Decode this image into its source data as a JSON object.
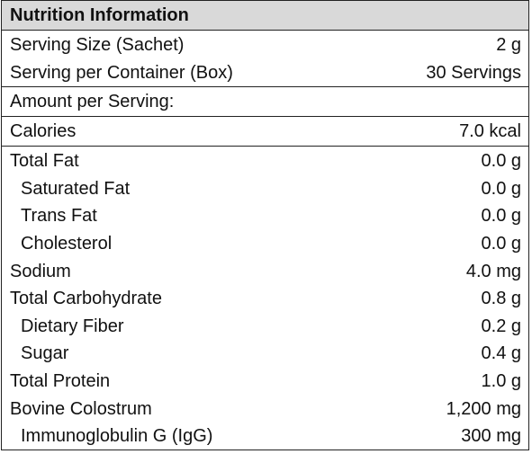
{
  "title": "Nutrition Information",
  "serving": [
    {
      "label": "Serving Size (Sachet)",
      "value": "2 g"
    },
    {
      "label": "Serving per Container (Box)",
      "value": "30 Servings"
    }
  ],
  "amount_label": "Amount per Serving:",
  "calories": {
    "label": "Calories",
    "value": "7.0 kcal"
  },
  "nutrients": [
    {
      "label": "Total Fat",
      "value": "0.0 g"
    },
    {
      "label": "Saturated Fat",
      "value": "0.0 g"
    },
    {
      "label": "Trans Fat",
      "value": "0.0 g"
    },
    {
      "label": "Cholesterol",
      "value": "0.0 g"
    },
    {
      "label": "Sodium",
      "value": "4.0 mg"
    },
    {
      "label": "Total Carbohydrate",
      "value": "0.8 g"
    },
    {
      "label": "Dietary Fiber",
      "value": "0.2 g"
    },
    {
      "label": "Sugar",
      "value": "0.4 g"
    },
    {
      "label": "Total Protein",
      "value": "1.0 g"
    },
    {
      "label": "Bovine Colostrum",
      "value": "1,200 mg"
    },
    {
      "label": "Immunoglobulin G (IgG)",
      "value": "300 mg"
    }
  ]
}
